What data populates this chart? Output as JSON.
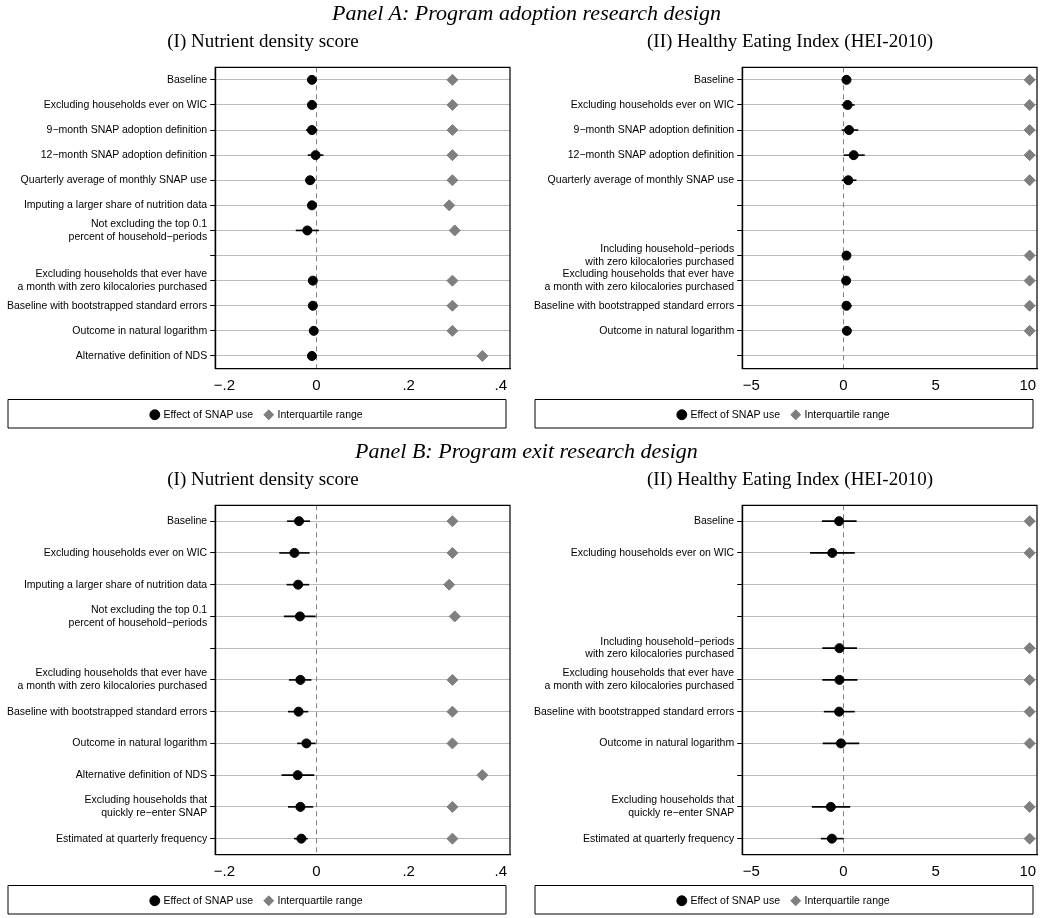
{
  "chart_data": [
    {
      "type": "scatter",
      "orientation": "horizontal",
      "title": "(I) Nutrient density score",
      "annotations": [
        "Panel A: Program adoption research design"
      ],
      "categories": [
        "Baseline",
        "Excluding households ever on WIC",
        "9−month SNAP adoption definition",
        "12−month SNAP adoption definition",
        "Quarterly average of monthly SNAP use",
        "Imputing a larger share of nutrition data",
        "Not excluding the top 0.1\npercent of household−periods",
        null,
        "Excluding households that ever have\na month with zero kilocalories purchased",
        "Baseline with bootstrapped standard errors",
        "Outcome in natural logarithm",
        "Alternative definition of NDS"
      ],
      "series": [
        {
          "name": "Effect of SNAP use",
          "color": "#000000",
          "marker": "circle",
          "values": [
            -0.01,
            -0.01,
            -0.01,
            -0.002,
            -0.014,
            -0.01,
            -0.02,
            null,
            -0.008,
            -0.008,
            -0.006,
            -0.01
          ],
          "errors": [
            null,
            null,
            [
              -0.023,
              0.002
            ],
            [
              -0.019,
              0.015
            ],
            [
              -0.025,
              -0.002
            ],
            null,
            [
              -0.045,
              0.005
            ],
            null,
            null,
            null,
            null,
            null
          ]
        },
        {
          "name": "Interquartile range",
          "color": "#7f7f7f",
          "marker": "diamond",
          "values": [
            0.295,
            0.295,
            0.295,
            0.295,
            0.295,
            0.288,
            0.3,
            null,
            0.295,
            0.295,
            0.295,
            0.36
          ]
        }
      ],
      "xlim": [
        -0.22,
        0.42
      ],
      "xticks": [
        {
          "value": -0.2,
          "label": "−.2"
        },
        0,
        {
          "value": 0.2,
          "label": ".2"
        },
        {
          "value": 0.4,
          "label": ".4"
        }
      ],
      "ref_lines": [
        {
          "axis": "x",
          "value": 0,
          "color": "#7f7f7f",
          "line_style": "dashed"
        }
      ],
      "grid": "y",
      "legend": "bottom"
    },
    {
      "type": "scatter",
      "orientation": "horizontal",
      "title": "(II) Healthy Eating Index (HEI-2010)",
      "categories": [
        "Baseline",
        "Excluding households ever on WIC",
        "9−month SNAP adoption definition",
        "12−month SNAP adoption definition",
        "Quarterly average of monthly SNAP use",
        null,
        null,
        "Including household−periods\nwith zero kilocalories purchased",
        "Excluding households that ever have\na month with zero kilocalories purchased",
        "Baseline with bootstrapped standard errors",
        "Outcome in natural logarithm",
        null
      ],
      "series": [
        {
          "name": "Effect of SNAP use",
          "color": "#000000",
          "marker": "circle",
          "values": [
            0.16,
            0.22,
            0.3,
            0.55,
            0.26,
            null,
            null,
            0.16,
            0.14,
            0.16,
            0.18,
            null
          ],
          "errors": [
            null,
            [
              -0.1,
              0.6
            ],
            [
              -0.1,
              0.8
            ],
            [
              0,
              1.15
            ],
            [
              -0.1,
              0.7
            ],
            null,
            null,
            null,
            null,
            [
              0,
              0.45
            ],
            null,
            null
          ]
        },
        {
          "name": "Interquartile range",
          "color": "#7f7f7f",
          "marker": "diamond",
          "values": [
            10.1,
            10.1,
            10.1,
            10.1,
            10.1,
            null,
            null,
            10.1,
            10.1,
            10.1,
            10.1,
            null
          ]
        }
      ],
      "xlim": [
        -5.5,
        10.5
      ],
      "xticks": [
        {
          "value": -5,
          "label": "−5"
        },
        0,
        5,
        10
      ],
      "ref_lines": [
        {
          "axis": "x",
          "value": 0,
          "color": "#7f7f7f",
          "line_style": "dashed"
        }
      ],
      "grid": "y",
      "legend": "bottom"
    },
    {
      "type": "scatter",
      "orientation": "horizontal",
      "title": "(I) Nutrient density score",
      "annotations": [
        "Panel B: Program exit research design"
      ],
      "categories": [
        "Baseline",
        "Excluding households ever on WIC",
        "Imputing a larger share of nutrition data",
        "Not excluding the top 0.1\npercent of household−periods",
        null,
        "Excluding households that ever have\na month with zero kilocalories purchased",
        "Baseline with bootstrapped standard errors",
        "Outcome in natural logarithm",
        "Alternative definition of NDS",
        "Excluding households that\nquickly re−enter SNAP",
        "Estimated at quarterly frequency"
      ],
      "series": [
        {
          "name": "Effect of SNAP use",
          "color": "#000000",
          "marker": "circle",
          "values": [
            -0.038,
            -0.048,
            -0.04,
            -0.036,
            null,
            -0.035,
            -0.039,
            -0.022,
            -0.041,
            -0.035,
            -0.033
          ],
          "errors": [
            [
              -0.064,
              -0.014
            ],
            [
              -0.081,
              -0.015
            ],
            [
              -0.065,
              -0.016
            ],
            [
              -0.071,
              -0.002
            ],
            null,
            [
              -0.06,
              -0.011
            ],
            [
              -0.062,
              -0.018
            ],
            [
              -0.042,
              -0.002
            ],
            [
              -0.076,
              -0.005
            ],
            [
              -0.062,
              -0.007
            ],
            [
              -0.049,
              -0.019
            ]
          ]
        },
        {
          "name": "Interquartile range",
          "color": "#7f7f7f",
          "marker": "diamond",
          "values": [
            0.295,
            0.295,
            0.288,
            0.3,
            null,
            0.295,
            0.295,
            0.295,
            0.36,
            0.295,
            0.295
          ]
        }
      ],
      "xlim": [
        -0.22,
        0.42
      ],
      "xticks": [
        {
          "value": -0.2,
          "label": "−.2"
        },
        0,
        {
          "value": 0.2,
          "label": ".2"
        },
        {
          "value": 0.4,
          "label": ".4"
        }
      ],
      "ref_lines": [
        {
          "axis": "x",
          "value": 0,
          "color": "#7f7f7f",
          "line_style": "dashed"
        }
      ],
      "grid": "y",
      "legend": "bottom"
    },
    {
      "type": "scatter",
      "orientation": "horizontal",
      "title": "(II) Healthy Eating Index (HEI-2010)",
      "categories": [
        "Baseline",
        "Excluding households ever on WIC",
        null,
        null,
        "Including household−periods\nwith zero kilocalories purchased",
        "Excluding households that ever have\na month with zero kilocalories purchased",
        "Baseline with bootstrapped standard errors",
        "Outcome in natural logarithm",
        null,
        "Excluding households that\nquickly re−enter SNAP",
        "Estimated at quarterly frequency"
      ],
      "series": [
        {
          "name": "Effect of SNAP use",
          "color": "#000000",
          "marker": "circle",
          "values": [
            -0.24,
            -0.61,
            null,
            null,
            -0.22,
            -0.22,
            -0.24,
            -0.14,
            null,
            -0.69,
            -0.63
          ],
          "errors": [
            [
              -1.17,
              0.71
            ],
            [
              -1.82,
              0.61
            ],
            null,
            null,
            [
              -1.15,
              0.73
            ],
            [
              -1.15,
              0.75
            ],
            [
              -1.07,
              0.61
            ],
            [
              -1.13,
              0.85
            ],
            null,
            [
              -1.72,
              0.36
            ],
            [
              -1.23,
              0
            ]
          ]
        },
        {
          "name": "Interquartile range",
          "color": "#7f7f7f",
          "marker": "diamond",
          "values": [
            10.1,
            10.1,
            null,
            null,
            10.1,
            10.1,
            10.1,
            10.1,
            null,
            10.1,
            10.1
          ]
        }
      ],
      "xlim": [
        -5.5,
        10.5
      ],
      "xticks": [
        {
          "value": -5,
          "label": "−5"
        },
        0,
        5,
        10
      ],
      "ref_lines": [
        {
          "axis": "x",
          "value": 0,
          "color": "#7f7f7f",
          "line_style": "dashed"
        }
      ],
      "grid": "y",
      "legend": "bottom"
    }
  ]
}
